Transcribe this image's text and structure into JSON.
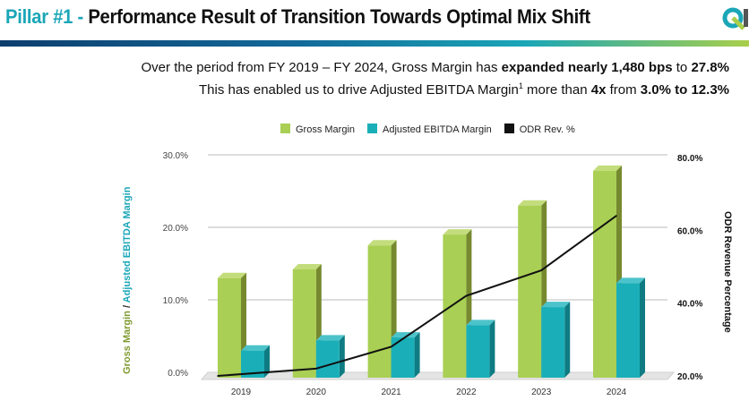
{
  "header": {
    "title_prefix": "Pillar #1 -",
    "title": "Performance Result of Transition Towards Optimal Mix Shift"
  },
  "subtitle": {
    "l1_a": "Over the period from FY 2019 – FY 2024, Gross Margin has ",
    "l1_b": "expanded nearly 1,480 bps",
    "l1_c": " to ",
    "l1_d": "27.8%",
    "l2_a": "This has enabled us to drive Adjusted EBITDA Margin",
    "l2_sup": "1",
    "l2_b": " more than ",
    "l2_c": "4x",
    "l2_d": " from ",
    "l2_e": "3.0% to 12.3%"
  },
  "colors": {
    "gross": "#a9cf54",
    "ebitda": "#1aafb8",
    "odr": "#111111",
    "accent": "#1aa6b7"
  },
  "chart_data": {
    "type": "bar",
    "categories": [
      "2019",
      "2020",
      "2021",
      "2022",
      "2023",
      "2024"
    ],
    "series": [
      {
        "name": "Gross Margin",
        "axis": "left",
        "values": [
          13.0,
          14.2,
          17.5,
          19.0,
          23.0,
          27.8
        ]
      },
      {
        "name": "Adjusted EBITDA Margin",
        "axis": "left",
        "values": [
          3.0,
          4.4,
          4.8,
          6.5,
          9.0,
          12.3
        ]
      },
      {
        "name": "ODR Rev. %",
        "axis": "right",
        "type": "line",
        "values": [
          20,
          22,
          28,
          42,
          49,
          64
        ]
      }
    ],
    "y_left": {
      "label_a": "Gross Margin",
      "label_sep": " / ",
      "label_b": "Adjusted EBITDA Margin",
      "ylim": [
        0,
        30
      ],
      "ticks": [
        "0.0%",
        "10.0%",
        "20.0%",
        "30.0%"
      ]
    },
    "y_right": {
      "label": "ODR Revenue Percentage",
      "ylim": [
        20,
        80
      ],
      "ticks": [
        "20.0%",
        "40.0%",
        "60.0%",
        "80.0%"
      ]
    },
    "legend_position": "top",
    "grid": true
  }
}
